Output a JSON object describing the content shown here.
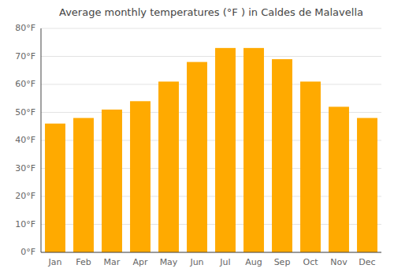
{
  "chart_data": {
    "type": "bar",
    "title": "Average monthly temperatures (°F ) in Caldes de Malavella",
    "categories": [
      "Jan",
      "Feb",
      "Mar",
      "Apr",
      "May",
      "Jun",
      "Jul",
      "Aug",
      "Sep",
      "Oct",
      "Nov",
      "Dec"
    ],
    "values": [
      46,
      48,
      51,
      54,
      61,
      68,
      73,
      73,
      69,
      61,
      52,
      48
    ],
    "color": "#FFAA00",
    "ylim": [
      0,
      80
    ],
    "yticks": [
      {
        "value": 0,
        "label": "0°F"
      },
      {
        "value": 10,
        "label": "10°F"
      },
      {
        "value": 20,
        "label": "20°F"
      },
      {
        "value": 30,
        "label": "30°F"
      },
      {
        "value": 40,
        "label": "40°F"
      },
      {
        "value": 50,
        "label": "50°F"
      },
      {
        "value": 60,
        "label": "60°F"
      },
      {
        "value": 70,
        "label": "70°F"
      },
      {
        "value": 80,
        "label": "80°F"
      }
    ],
    "grid": true
  }
}
